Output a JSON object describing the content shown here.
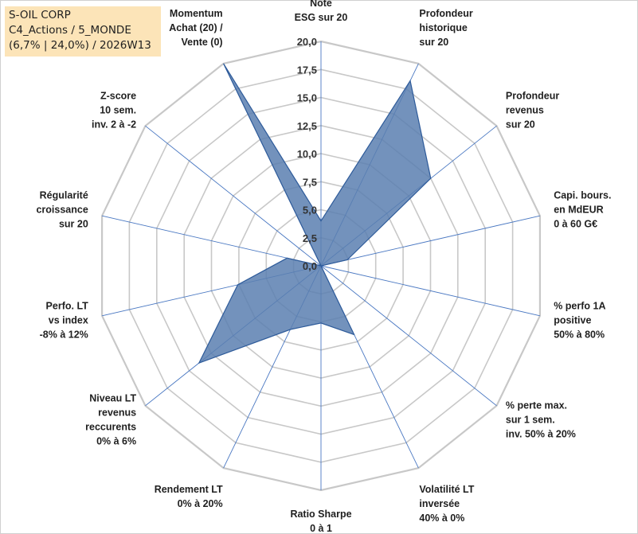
{
  "title_box": {
    "line1": "S-OIL CORP",
    "line2": "C4_Actions / 5_MONDE",
    "line3": "(6,7% | 24,0%) / 2026W13"
  },
  "colors": {
    "fill": "#5b7fb0",
    "stroke": "#2e5b9a",
    "grid": "#c8c8c8",
    "spoke": "#4a78c2",
    "title_bg": "#fce4b8"
  },
  "chart_data": {
    "type": "radar",
    "title": "S-OIL CORP",
    "rlim": [
      0,
      20
    ],
    "ticks": [
      "0,0",
      "2,5",
      "5,0",
      "7,5",
      "10,0",
      "12,5",
      "15,0",
      "17,5",
      "20,0"
    ],
    "categories": [
      [
        "Note",
        "ESG sur 20"
      ],
      [
        "Profondeur",
        "historique",
        "sur 20"
      ],
      [
        "Profondeur",
        "revenus",
        "sur 20"
      ],
      [
        "Capi. bours.",
        "en MdEUR",
        "0 à 60 G€"
      ],
      [
        "% perfo 1A",
        "positive",
        "50% à 80%"
      ],
      [
        "% perte max.",
        "sur 1 sem.",
        "inv. 50% à 20%"
      ],
      [
        "Volatilité LT",
        "inversée",
        "40% à 0%"
      ],
      [
        "Ratio Sharpe",
        "0 à 1"
      ],
      [
        "Rendement LT",
        "0% à 20%"
      ],
      [
        "Niveau LT",
        "revenus",
        "reccurents",
        "0% à 6%"
      ],
      [
        "Perfo. LT",
        "vs index",
        "-8% à 12%"
      ],
      [
        "Régularité",
        "croissance",
        "sur 20"
      ],
      [
        "Z-score",
        "10 sem.",
        "inv. 2 à -2"
      ],
      [
        "Momentum",
        "Achat (20) /",
        "Vente (0)"
      ]
    ],
    "series": [
      {
        "name": "S-OIL CORP",
        "values": [
          4.0,
          18.3,
          12.5,
          2.4,
          0.0,
          0.0,
          6.8,
          5.1,
          6.3,
          13.9,
          7.6,
          3.1,
          0.0,
          20.0
        ]
      }
    ]
  }
}
